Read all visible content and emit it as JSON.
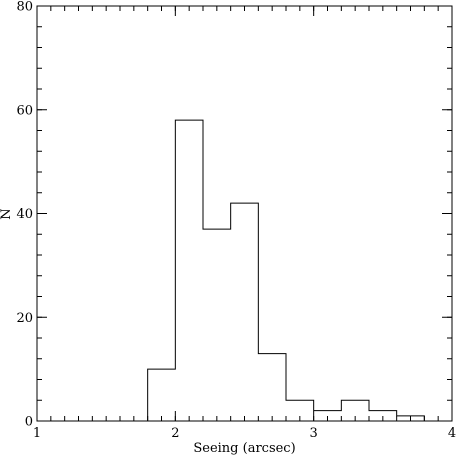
{
  "chart_data": {
    "type": "histogram",
    "title": "",
    "xlabel": "Seeing (arcsec)",
    "ylabel": "N",
    "xlim": [
      1,
      4
    ],
    "ylim": [
      0,
      80
    ],
    "x_major_ticks": [
      1,
      2,
      3,
      4
    ],
    "x_minor_step": 0.1,
    "y_major_ticks": [
      0,
      20,
      40,
      60,
      80
    ],
    "y_minor_step": 4,
    "bin_edges": [
      1.0,
      1.2,
      1.4,
      1.6,
      1.8,
      2.0,
      2.2,
      2.4,
      2.6,
      2.8,
      3.0,
      3.2,
      3.4,
      3.6,
      3.8,
      4.0
    ],
    "counts": [
      0,
      0,
      0,
      0,
      10,
      58,
      37,
      42,
      13,
      4,
      2,
      4,
      2,
      1,
      0
    ],
    "grid": false,
    "legend": "none",
    "line_color": "#000000"
  }
}
